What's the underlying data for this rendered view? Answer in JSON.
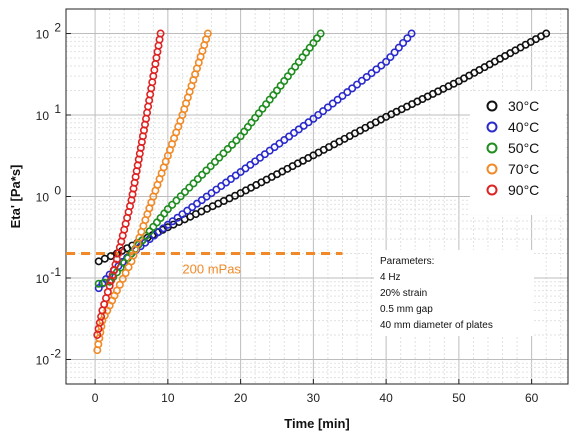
{
  "chart_data": {
    "type": "scatter",
    "xlabel": "Time [min]",
    "ylabel": "Eta' [Pa*s]",
    "xlim": [
      -4,
      65
    ],
    "ylim": [
      0.005,
      200
    ],
    "yscale": "log",
    "grid": true,
    "legend_position": "right",
    "x_ticks": [
      0,
      10,
      20,
      30,
      40,
      50,
      60
    ],
    "x_tick_labels": [
      "0",
      "10",
      "20",
      "30",
      "40",
      "50",
      "60"
    ],
    "y_ticks": [
      0.01,
      0.1,
      1,
      10,
      100
    ],
    "y_tick_labels": [
      [
        "10",
        "-2"
      ],
      [
        "10",
        "-1"
      ],
      [
        "10",
        "0"
      ],
      [
        "10",
        "1"
      ],
      [
        "10",
        "2"
      ]
    ],
    "series": [
      {
        "name": "30°C",
        "color": "#111111",
        "points": [
          [
            0.5,
            0.16
          ],
          [
            3,
            0.2
          ],
          [
            10,
            0.42
          ],
          [
            20,
            1.1
          ],
          [
            30,
            3.2
          ],
          [
            40,
            9.5
          ],
          [
            50,
            26
          ],
          [
            62,
            100
          ]
        ]
      },
      {
        "name": "40°C",
        "color": "#2a2acc",
        "points": [
          [
            0.5,
            0.075
          ],
          [
            2,
            0.11
          ],
          [
            5,
            0.2
          ],
          [
            10,
            0.45
          ],
          [
            20,
            2.0
          ],
          [
            30,
            9.0
          ],
          [
            40,
            45
          ],
          [
            43.5,
            100
          ]
        ]
      },
      {
        "name": "50°C",
        "color": "#1e8c1e",
        "points": [
          [
            0.5,
            0.085
          ],
          [
            2,
            0.09
          ],
          [
            5,
            0.2
          ],
          [
            10,
            0.7
          ],
          [
            20,
            5.5
          ],
          [
            25,
            20
          ],
          [
            31,
            100
          ]
        ]
      },
      {
        "name": "70°C",
        "color": "#f08a28",
        "points": [
          [
            0.3,
            0.013
          ],
          [
            1,
            0.03
          ],
          [
            3,
            0.07
          ],
          [
            5,
            0.16
          ],
          [
            8,
            1.0
          ],
          [
            12,
            10
          ],
          [
            15.5,
            100
          ]
        ]
      },
      {
        "name": "90°C",
        "color": "#dd2222",
        "points": [
          [
            0.3,
            0.02
          ],
          [
            1,
            0.04
          ],
          [
            2,
            0.08
          ],
          [
            3,
            0.17
          ],
          [
            5,
            0.9
          ],
          [
            7,
            9
          ],
          [
            9,
            100
          ]
        ]
      }
    ],
    "reference_line": {
      "y": 0.2,
      "label": "200 mPas",
      "color": "#f08a28",
      "x_start": -4,
      "x_end": 34
    },
    "annotation_lines": [
      "Parameters:",
      "4 Hz",
      "20% strain",
      "0.5 mm gap",
      "40 mm diameter of plates"
    ]
  }
}
